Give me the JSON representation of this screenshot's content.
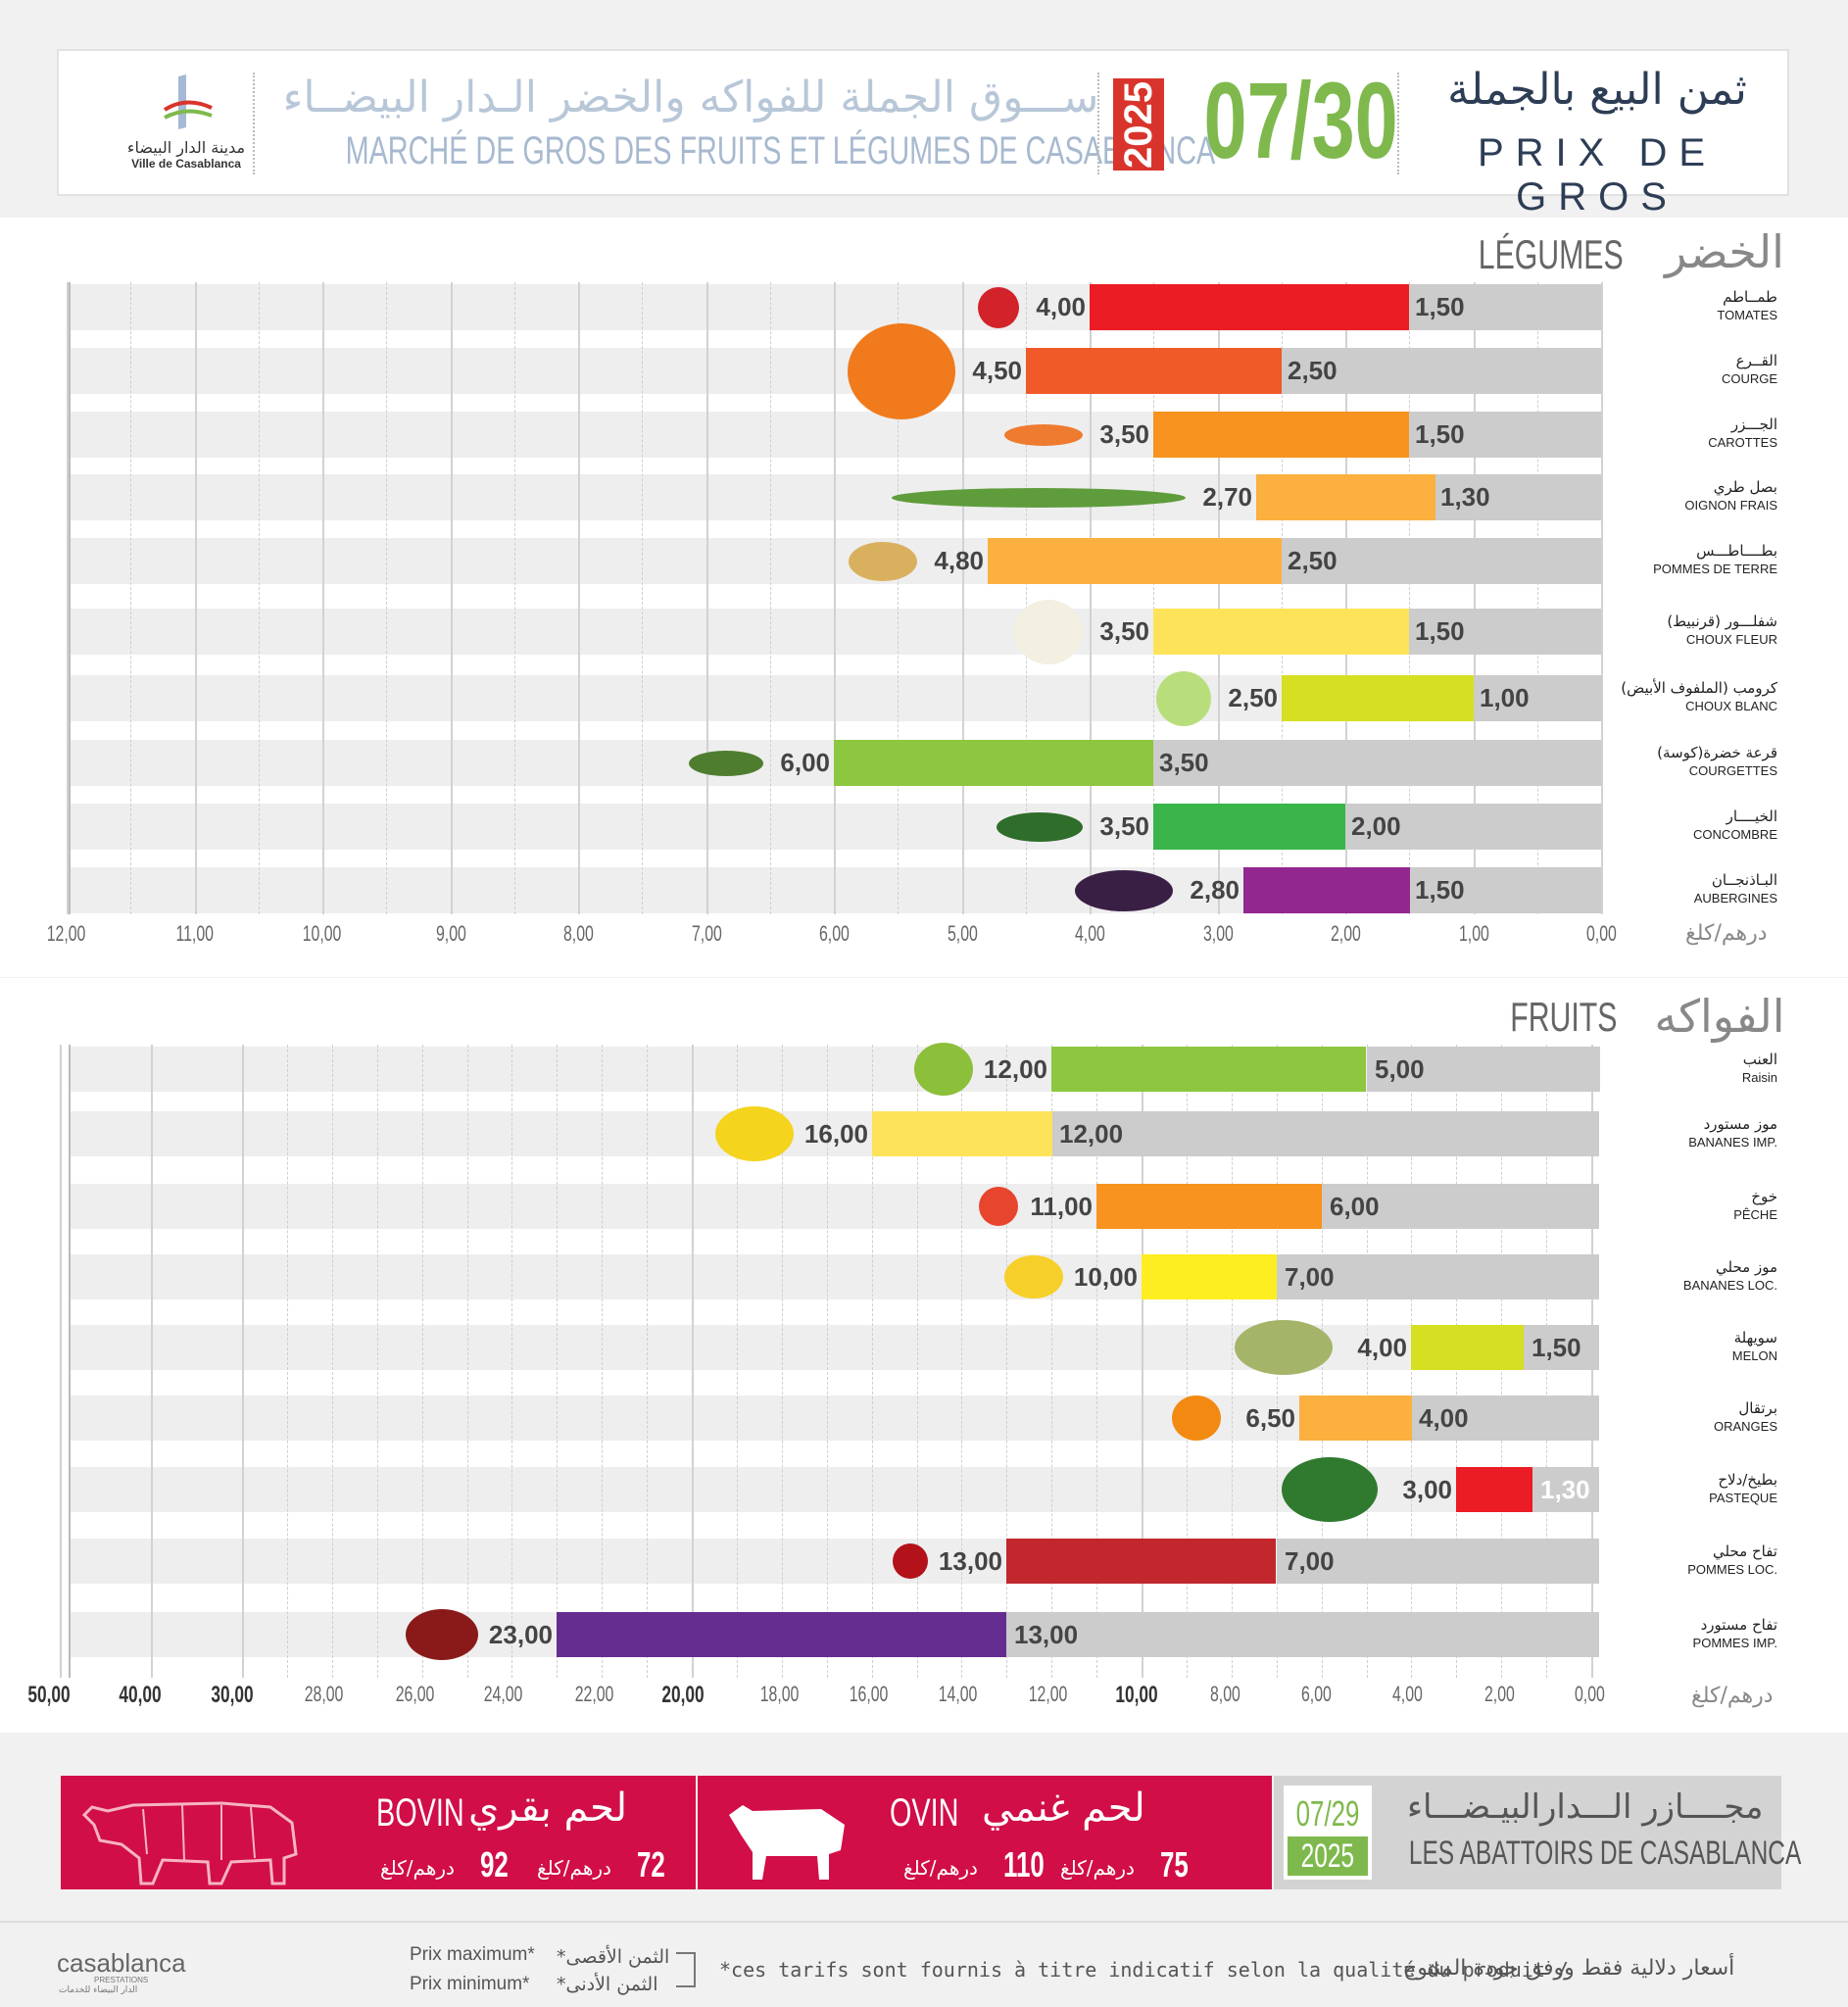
{
  "header": {
    "logo_ar": "مدينة الدار البيضاء",
    "logo_fr": "Ville de Casablanca",
    "market_ar": "ســـوق الجملة للفواكه والخضر الـدار البيضــاء",
    "market_fr": "MARCHÉ DE GROS DES FRUITS ET LÉGUMES DE CASABLANCA",
    "year": "2025",
    "date": "07/30",
    "title_ar": "ثمن البيع بالجملة",
    "title_fr": "PRIX DE GROS"
  },
  "colors": {
    "tomato": "#ec1c24",
    "courge": "#ef5a28",
    "carottes": "#f7931e",
    "oignon": "#fbb040",
    "pdt": "#fbb040",
    "choufleur": "#fde35a",
    "chouxblanc": "#d7df23",
    "courgettes": "#8dc63f",
    "concombre": "#39b54a",
    "aubergines": "#92278f",
    "raisin": "#8dc63f",
    "bananesimp": "#fde35a",
    "peche": "#f7931e",
    "bananesloc": "#fcee21",
    "melon": "#d7df23",
    "oranges": "#fbb040",
    "pasteque": "#ec1c24",
    "pommesloc": "#c1272d",
    "pommesimp": "#662d91",
    "minbar": "#cccccc"
  },
  "chart_data": [
    {
      "type": "bar",
      "title_fr": "LÉGUMES",
      "title_ar": "الخضر",
      "unit": "درهم/كلغ",
      "xlim": [
        0,
        12
      ],
      "ticks": [
        "12,00",
        "11,00",
        "10,00",
        "9,00",
        "8,00",
        "7,00",
        "6,00",
        "5,00",
        "4,00",
        "3,00",
        "2,00",
        "1,00",
        "0,00"
      ],
      "categories": [
        {
          "ar": "طمــاطم",
          "fr": "TOMATES",
          "max": 4.0,
          "min": 1.5,
          "max_label": "4,00",
          "min_label": "1,50",
          "color": "#ec1c24",
          "icon": "tomato-icon"
        },
        {
          "ar": "القــرع",
          "fr": "COURGE",
          "max": 4.5,
          "min": 2.5,
          "max_label": "4,50",
          "min_label": "2,50",
          "color": "#ef5a28",
          "icon": "pumpkin-icon"
        },
        {
          "ar": "الجـــزر",
          "fr": "CAROTTES",
          "max": 3.5,
          "min": 1.5,
          "max_label": "3,50",
          "min_label": "1,50",
          "color": "#f7931e",
          "icon": "carrot-icon"
        },
        {
          "ar": "بصل طري",
          "fr": "OIGNON FRAIS",
          "max": 2.7,
          "min": 1.3,
          "max_label": "2,70",
          "min_label": "1,30",
          "color": "#fbb040",
          "icon": "onion-icon"
        },
        {
          "ar": "بطــــاطـــس",
          "fr": "POMMES DE TERRE",
          "max": 4.8,
          "min": 2.5,
          "max_label": "4,80",
          "min_label": "2,50",
          "color": "#fbb040",
          "icon": "potato-icon"
        },
        {
          "ar": "شفلـــور (قرنبيط)",
          "fr": "CHOUX FLEUR",
          "max": 3.5,
          "min": 1.5,
          "max_label": "3,50",
          "min_label": "1,50",
          "color": "#fde35a",
          "icon": "cauliflower-icon"
        },
        {
          "ar": "كرومب (الملفوف الأبيض)",
          "fr": "CHOUX BLANC",
          "max": 2.5,
          "min": 1.0,
          "max_label": "2,50",
          "min_label": "1,00",
          "color": "#d7df23",
          "icon": "cabbage-icon"
        },
        {
          "ar": "قرعة خضرة(كوسة)",
          "fr": "COURGETTES",
          "max": 6.0,
          "min": 3.5,
          "max_label": "6,00",
          "min_label": "3,50",
          "color": "#8dc63f",
          "icon": "zucchini-icon"
        },
        {
          "ar": "الخيــــار",
          "fr": "CONCOMBRE",
          "max": 3.5,
          "min": 2.0,
          "max_label": "3,50",
          "min_label": "2,00",
          "color": "#39b54a",
          "icon": "cucumber-icon"
        },
        {
          "ar": "البـاذنجــان",
          "fr": "AUBERGINES",
          "max": 2.8,
          "min": 1.5,
          "max_label": "2,80",
          "min_label": "1,50",
          "color": "#92278f",
          "icon": "eggplant-icon"
        }
      ]
    },
    {
      "type": "bar",
      "title_fr": "FRUITS",
      "title_ar": "الفواكه",
      "unit": "درهم/كلغ",
      "scale": "piecewise",
      "ticks": [
        {
          "label": "50,00",
          "value": 50,
          "bold": true
        },
        {
          "label": "40,00",
          "value": 40,
          "bold": true
        },
        {
          "label": "30,00",
          "value": 30,
          "bold": true
        },
        {
          "label": "28,00",
          "value": 28
        },
        {
          "label": "26,00",
          "value": 26
        },
        {
          "label": "24,00",
          "value": 24
        },
        {
          "label": "22,00",
          "value": 22
        },
        {
          "label": "20,00",
          "value": 20,
          "bold": true
        },
        {
          "label": "18,00",
          "value": 18
        },
        {
          "label": "16,00",
          "value": 16
        },
        {
          "label": "14,00",
          "value": 14
        },
        {
          "label": "12,00",
          "value": 12
        },
        {
          "label": "10,00",
          "value": 10,
          "bold": true
        },
        {
          "label": "8,00",
          "value": 8
        },
        {
          "label": "6,00",
          "value": 6
        },
        {
          "label": "4,00",
          "value": 4
        },
        {
          "label": "2,00",
          "value": 2
        },
        {
          "label": "0,00",
          "value": 0
        }
      ],
      "categories": [
        {
          "ar": "العنب",
          "fr": "Raisin",
          "max": 12.0,
          "min": 5.0,
          "max_label": "12,00",
          "min_label": "5,00",
          "color": "#8dc63f",
          "icon": "grapes-icon"
        },
        {
          "ar": "موز مستورد",
          "fr": "BANANES IMP.",
          "max": 16.0,
          "min": 12.0,
          "max_label": "16,00",
          "min_label": "12,00",
          "color": "#fde35a",
          "icon": "banana-bunch-icon"
        },
        {
          "ar": "خوخ",
          "fr": "PÊCHE",
          "max": 11.0,
          "min": 6.0,
          "max_label": "11,00",
          "min_label": "6,00",
          "color": "#f7931e",
          "icon": "peach-icon"
        },
        {
          "ar": "موز محلي",
          "fr": "BANANES LOC.",
          "max": 10.0,
          "min": 7.0,
          "max_label": "10,00",
          "min_label": "7,00",
          "color": "#fcee21",
          "icon": "banana-icon"
        },
        {
          "ar": "سويهلة",
          "fr": "MELON",
          "max": 4.0,
          "min": 1.5,
          "max_label": "4,00",
          "min_label": "1,50",
          "color": "#d7df23",
          "icon": "melon-icon"
        },
        {
          "ar": "برتقال",
          "fr": "ORANGES",
          "max": 6.5,
          "min": 4.0,
          "max_label": "6,50",
          "min_label": "4,00",
          "color": "#fbb040",
          "icon": "orange-icon"
        },
        {
          "ar": "بطيخ/دلاح",
          "fr": "PASTEQUE",
          "max": 3.0,
          "min": 1.3,
          "max_label": "3,00",
          "min_label": "1,30",
          "color": "#ec1c24",
          "icon": "watermelon-icon"
        },
        {
          "ar": "تفاح محلي",
          "fr": "POMMES LOC.",
          "max": 13.0,
          "min": 7.0,
          "max_label": "13,00",
          "min_label": "7,00",
          "color": "#c1272d",
          "icon": "apple-icon"
        },
        {
          "ar": "تفاح مستورد",
          "fr": "POMMES IMP.",
          "max": 23.0,
          "min": 13.0,
          "max_label": "23,00",
          "min_label": "13,00",
          "color": "#662d91",
          "icon": "apples-icon"
        }
      ]
    }
  ],
  "abattoirs": {
    "bovin_fr": "BOVIN",
    "bovin_ar": "لحم بقري",
    "bovin_min": "72",
    "bovin_max": "92",
    "ovin_fr": "OVIN",
    "ovin_ar": "لحم غنمي",
    "ovin_min": "75",
    "ovin_max": "110",
    "unit": "درهم/كلغ",
    "date": "07/29",
    "year": "2025",
    "name_ar": "مجــــازر الـــدارالبيـضـــاء",
    "name_fr": "LES ABATTOIRS DE CASABLANCA"
  },
  "footer": {
    "brand": "casablanca",
    "brand_sub": "PRESTATIONS",
    "brand_ar": "الدار البيضاء للخدمات",
    "prix_max_fr": "Prix maximum*",
    "prix_min_fr": "Prix minimum*",
    "prix_max_ar": "*الثمن الأقصى",
    "prix_min_ar": "*الثمن الأدنى",
    "note_fr": "*ces tarifs sont fournis à titre indicatif selon la qualité du produit  /",
    "note_ar": "أسعار دلالية فقط ووفق جودة المنتوج"
  }
}
